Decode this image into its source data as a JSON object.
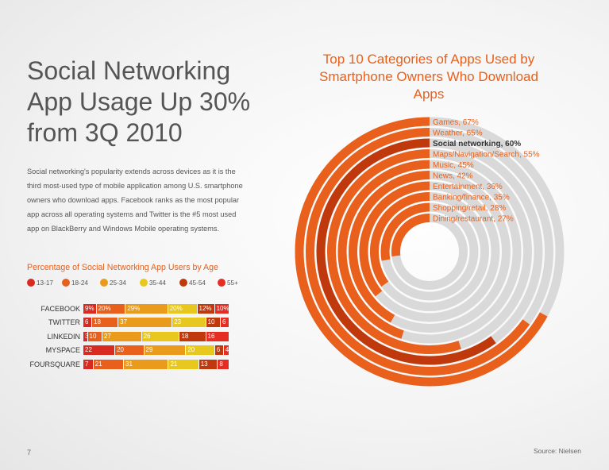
{
  "headline": "Social Networking App Usage Up 30% from 3Q 2010",
  "intro": "Social networking's popularity extends across devices as it is the third most-used type of mobile application among U.S. smartphone owners who download apps. Facebook ranks as the most popular app across all operating systems and Twitter is the #5 most used app on BlackBerry and Windows Mobile operating systems.",
  "page_number": "7",
  "source": "Source: Nielsen",
  "colors": {
    "accent": "#e8601c",
    "track": "#d9d9d9",
    "highlight": "#c0390c"
  },
  "chart_data": [
    {
      "type": "bar",
      "orientation": "horizontal-stacked",
      "title": "Percentage of Social Networking App Users by Age",
      "categories": [
        "FACEBOOK",
        "TWITTER",
        "LINKEDIN",
        "MYSPACE",
        "FOURSQUARE"
      ],
      "series": [
        {
          "name": "13-17",
          "color": "#d82a20",
          "values": [
            9,
            6,
            3,
            22,
            7
          ],
          "labels": [
            "9%",
            "6",
            "3",
            "22",
            "7"
          ]
        },
        {
          "name": "18-24",
          "color": "#e8601c",
          "values": [
            20,
            18,
            10,
            20,
            21
          ],
          "labels": [
            "20%",
            "18",
            "10",
            "20",
            "21"
          ]
        },
        {
          "name": "25-34",
          "color": "#eb9b1c",
          "values": [
            29,
            37,
            27,
            29,
            31
          ],
          "labels": [
            "29%",
            "37",
            "27",
            "29",
            "31"
          ]
        },
        {
          "name": "35-44",
          "color": "#e8c81e",
          "values": [
            20,
            23,
            26,
            20,
            21
          ],
          "labels": [
            "20%",
            "23",
            "26",
            "20",
            "21"
          ]
        },
        {
          "name": "45-54",
          "color": "#c0390c",
          "values": [
            12,
            10,
            18,
            6,
            13
          ],
          "labels": [
            "12%",
            "10",
            "18",
            "6",
            "13"
          ]
        },
        {
          "name": "55+",
          "color": "#e52d23",
          "values": [
            10,
            6,
            16,
            4,
            8
          ],
          "labels": [
            "10%",
            "6",
            "16",
            "4",
            "8"
          ]
        }
      ],
      "legend_position": "top"
    },
    {
      "type": "radial-bar",
      "title": "Top 10 Categories of Apps Used by Smartphone Owners Who Download Apps",
      "max": 100,
      "series": [
        {
          "label": "Games, 67%",
          "value": 67
        },
        {
          "label": "Weather, 65%",
          "value": 65
        },
        {
          "label": "Social networking, 60%",
          "value": 60,
          "highlight": true
        },
        {
          "label": "Maps/Navigation/Search, 55%",
          "value": 55
        },
        {
          "label": "Music, 45%",
          "value": 45
        },
        {
          "label": "News, 42%",
          "value": 42
        },
        {
          "label": "Entertainment, 36%",
          "value": 36
        },
        {
          "label": "Banking/finance, 35%",
          "value": 35
        },
        {
          "label": "Shopping/retail, 28%",
          "value": 28
        },
        {
          "label": "Dining/restaurant, 27%",
          "value": 27
        }
      ]
    }
  ]
}
